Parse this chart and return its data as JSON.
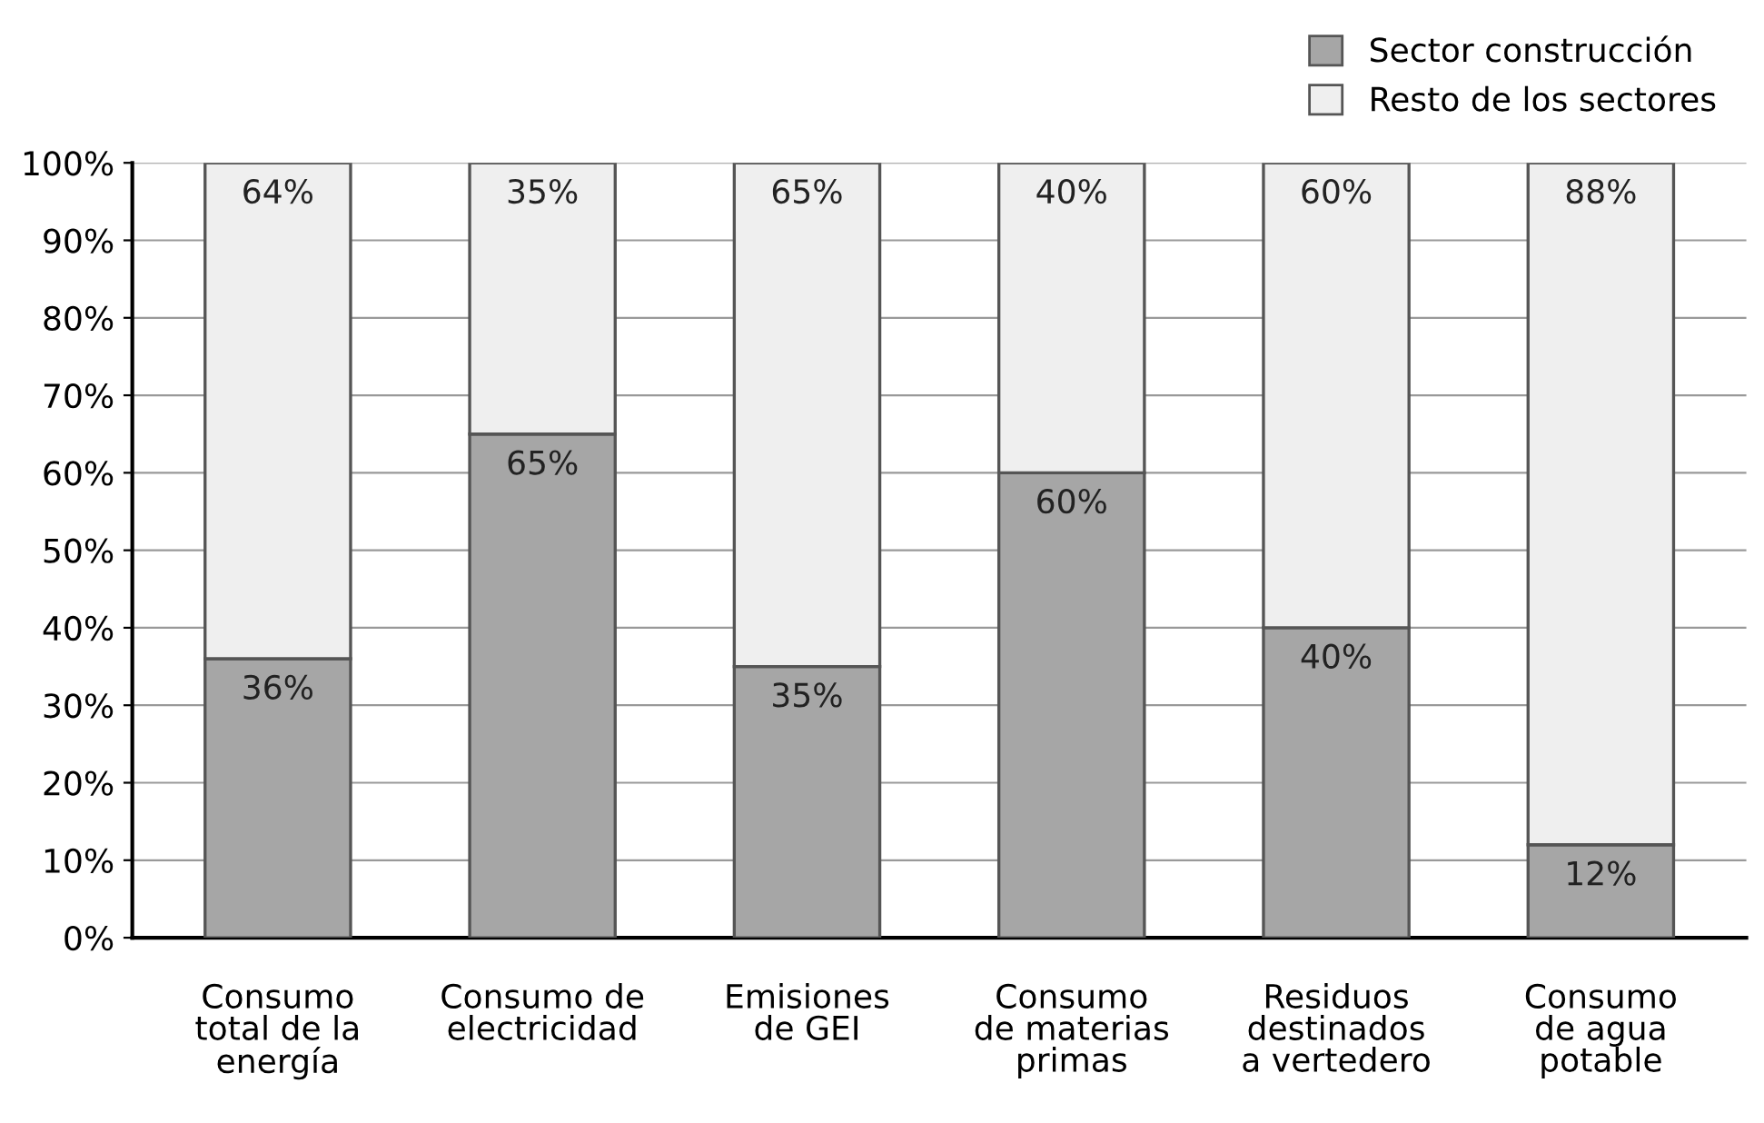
{
  "chart_data": {
    "type": "bar",
    "stacked": true,
    "categories": [
      "Consumo\ntotal de la\nenergía",
      "Consumo de\nelectricidad",
      "Emisiones\nde GEI",
      "Consumo\nde materias\nprimas",
      "Residuos\ndestinados\na vertedero",
      "Consumo\nde agua\npotable"
    ],
    "series": [
      {
        "name": "Sector construcción",
        "color": "#a6a6a6",
        "values": [
          36,
          65,
          35,
          60,
          40,
          12
        ],
        "value_labels": [
          "36%",
          "65%",
          "35%",
          "60%",
          "40%",
          "12%"
        ]
      },
      {
        "name": "Resto de los sectores",
        "color": "#efefef",
        "values": [
          64,
          35,
          65,
          40,
          60,
          88
        ],
        "value_labels": [
          "64%",
          "35%",
          "65%",
          "40%",
          "60%",
          "88%"
        ]
      }
    ],
    "ylim": [
      0,
      100
    ],
    "yticks": [
      {
        "value": 0,
        "label": "0%"
      },
      {
        "value": 10,
        "label": "10%"
      },
      {
        "value": 20,
        "label": "20%"
      },
      {
        "value": 30,
        "label": "30%"
      },
      {
        "value": 40,
        "label": "40%"
      },
      {
        "value": 50,
        "label": "50%"
      },
      {
        "value": 60,
        "label": "60%"
      },
      {
        "value": 70,
        "label": "70%"
      },
      {
        "value": 80,
        "label": "80%"
      },
      {
        "value": 90,
        "label": "90%"
      },
      {
        "value": 100,
        "label": "100%"
      }
    ],
    "grid": "y",
    "legend": "top right"
  }
}
